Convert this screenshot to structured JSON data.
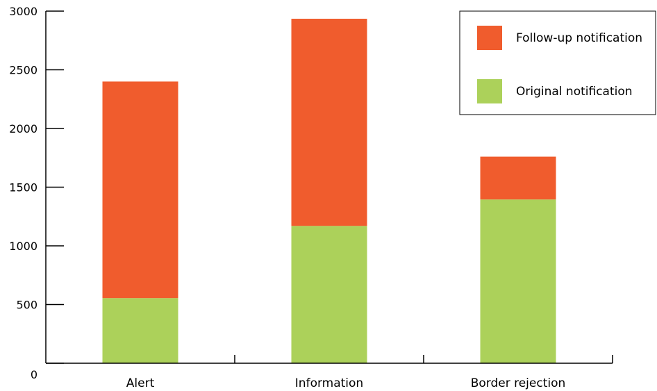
{
  "chart_data": {
    "type": "bar",
    "stacked": true,
    "categories": [
      "Alert",
      "Information",
      "Border rejection"
    ],
    "series": [
      {
        "name": "Original notification",
        "values": [
          555,
          1170,
          1395
        ],
        "color": "#acd15a"
      },
      {
        "name": "Follow-up notification",
        "values": [
          1845,
          1765,
          365
        ],
        "color": "#f05c2d"
      }
    ],
    "ylim": [
      0,
      3000
    ],
    "yticks": [
      "0",
      "500",
      "1000",
      "1500",
      "2000",
      "2500",
      "3000"
    ],
    "grid": false,
    "legend": {
      "position": "top-right",
      "entries": [
        "Follow-up notification",
        "Original notification"
      ]
    }
  }
}
